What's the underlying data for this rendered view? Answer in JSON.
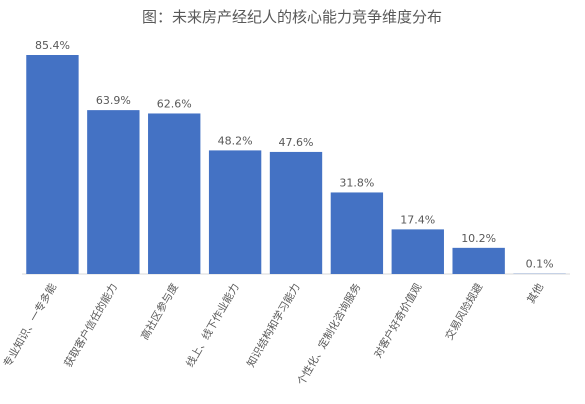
{
  "chart_data": {
    "type": "bar",
    "title": "图：未来房产经纪人的核心能力竞争维度分布",
    "categories": [
      "专业知识、一专多能",
      "获取客户信任的能力",
      "高社区参与度",
      "线上、线下作业能力",
      "知识结构和学习能力",
      "个性化、定制化咨询服务",
      "对客户好奇价值观",
      "交易风险规避",
      "其他"
    ],
    "values": [
      85.4,
      63.9,
      62.6,
      48.2,
      47.6,
      31.8,
      17.4,
      10.2,
      0.1
    ],
    "value_labels": [
      "85.4%",
      "63.9%",
      "62.6%",
      "48.2%",
      "47.6%",
      "31.8%",
      "17.4%",
      "10.2%",
      "0.1%"
    ],
    "color": "#4472c4"
  }
}
